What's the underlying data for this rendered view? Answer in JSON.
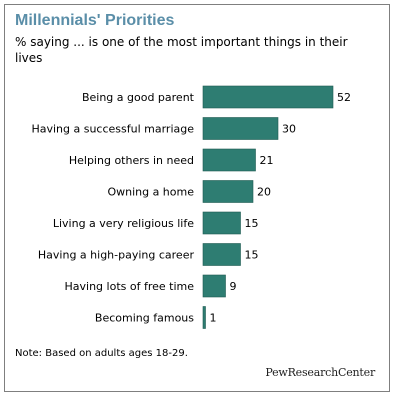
{
  "chart_data": {
    "type": "bar",
    "orientation": "horizontal",
    "title": "Millennials' Priorities",
    "subtitle": "% saying ... is one of the most important things in their lives",
    "categories": [
      "Being a good parent",
      "Having a successful marriage",
      "Helping others in need",
      "Owning a home",
      "Living a very religious life",
      "Having a high-paying career",
      "Having lots of free time",
      "Becoming famous"
    ],
    "values": [
      52,
      30,
      21,
      20,
      15,
      15,
      9,
      1
    ],
    "data_labels": [
      "52",
      "30",
      "21",
      "20",
      "15",
      "15",
      "9",
      "1"
    ],
    "xlim": [
      0,
      52
    ],
    "grid": false,
    "legend": "none",
    "bar_color": "#2e7d72",
    "bar_border_color": "#1f5a52"
  },
  "note": "Note: Based on adults ages 18-29.",
  "brand": "PewResearchCenter",
  "title_color": "#5a8ea8",
  "frame_color": "#7f7f7f"
}
